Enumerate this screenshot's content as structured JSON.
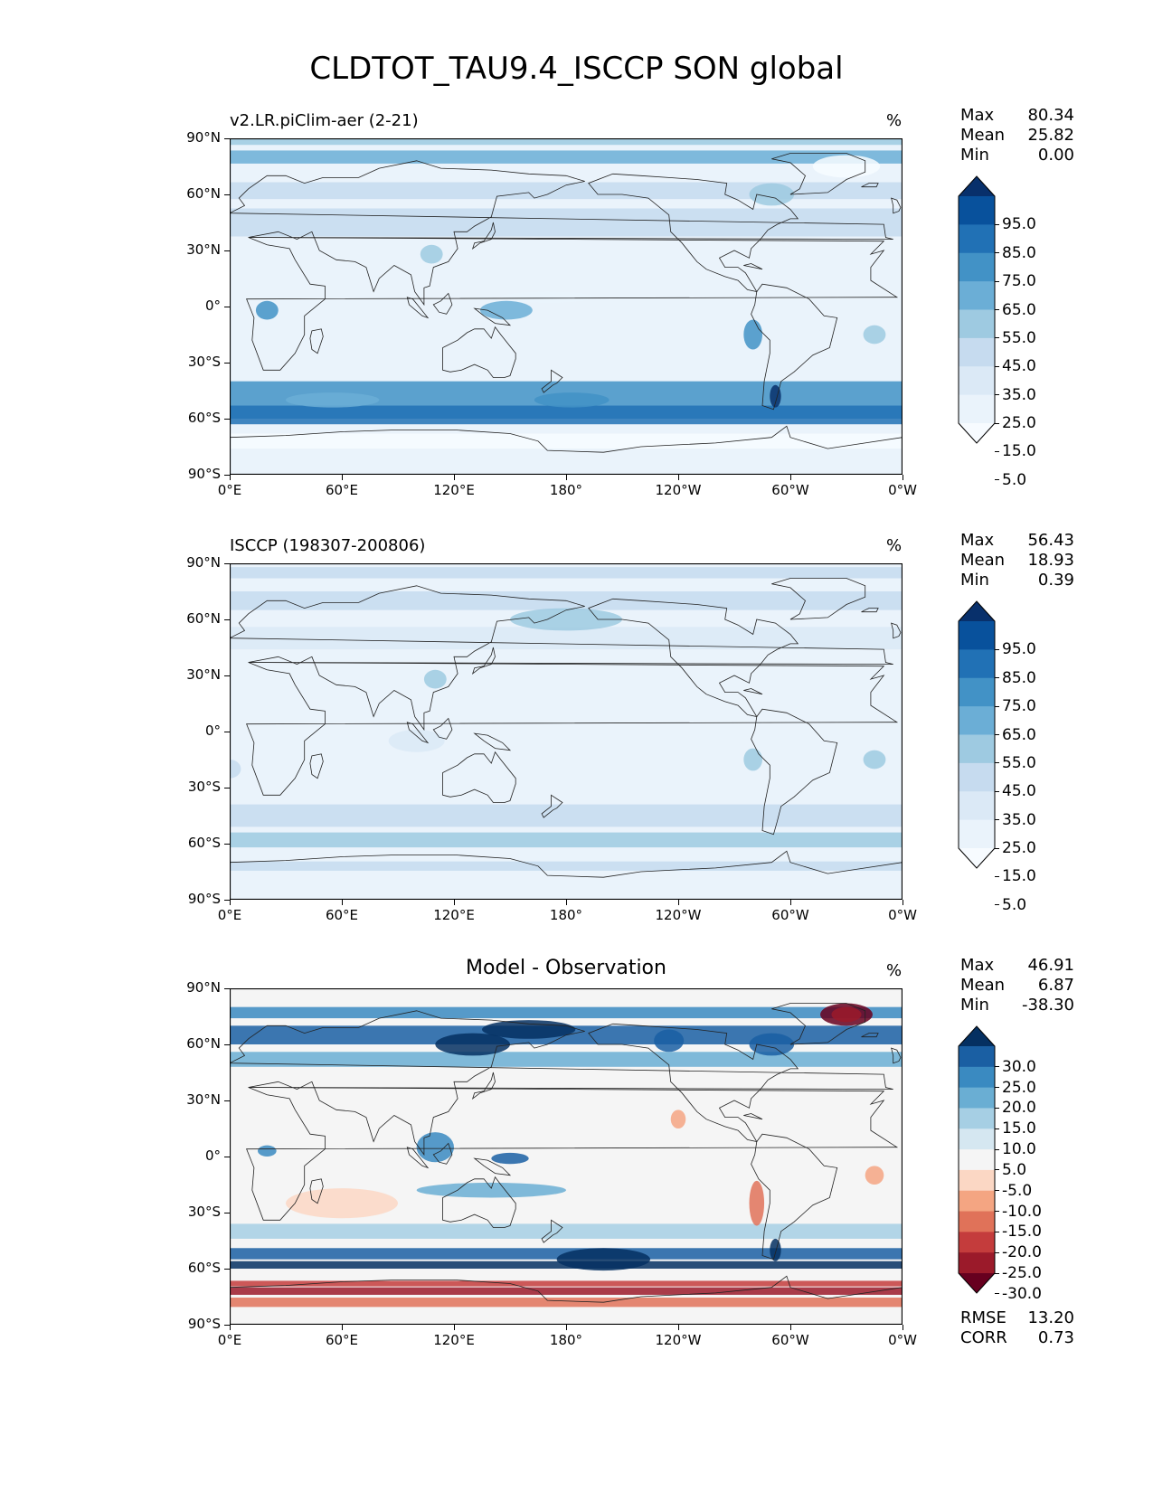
{
  "figure": {
    "title": "CLDTOT_TAU9.4_ISCCP SON global"
  },
  "axes": {
    "lat_ticks": [
      "90°N",
      "60°N",
      "30°N",
      "0°",
      "30°S",
      "60°S",
      "90°S"
    ],
    "lon_ticks": [
      "0°E",
      "60°E",
      "120°E",
      "180°",
      "120°W",
      "60°W",
      "0°W"
    ]
  },
  "panels": [
    {
      "id": "model",
      "title_left": "v2.LR.piClim-aer (2-21)",
      "title_center": "",
      "units": "%",
      "stats": [
        {
          "label": "Max",
          "value": "80.34"
        },
        {
          "label": "Mean",
          "value": "25.82"
        },
        {
          "label": "Min",
          "value": "0.00"
        }
      ],
      "colorbar": {
        "labels": [
          "95.0",
          "85.0",
          "75.0",
          "65.0",
          "55.0",
          "45.0",
          "35.0",
          "25.0",
          "15.0",
          "5.0"
        ],
        "colors": [
          "#08306b",
          "#08519c",
          "#2171b5",
          "#4292c6",
          "#6baed6",
          "#9ecae1",
          "#c6dbef",
          "#dbe9f6",
          "#eaf3fb",
          "#f7fbff"
        ]
      }
    },
    {
      "id": "obs",
      "title_left": "ISCCP (198307-200806)",
      "title_center": "",
      "units": "%",
      "stats": [
        {
          "label": "Max",
          "value": "56.43"
        },
        {
          "label": "Mean",
          "value": "18.93"
        },
        {
          "label": "Min",
          "value": "0.39"
        }
      ],
      "colorbar": {
        "labels": [
          "95.0",
          "85.0",
          "75.0",
          "65.0",
          "55.0",
          "45.0",
          "35.0",
          "25.0",
          "15.0",
          "5.0"
        ],
        "colors": [
          "#08306b",
          "#08519c",
          "#2171b5",
          "#4292c6",
          "#6baed6",
          "#9ecae1",
          "#c6dbef",
          "#dbe9f6",
          "#eaf3fb",
          "#f7fbff"
        ]
      }
    },
    {
      "id": "diff",
      "title_left": "",
      "title_center": "Model - Observation",
      "units": "%",
      "stats": [
        {
          "label": "Max",
          "value": "46.91"
        },
        {
          "label": "Mean",
          "value": "6.87"
        },
        {
          "label": "Min",
          "value": "-38.30"
        }
      ],
      "colorbar": {
        "labels": [
          "30.0",
          "25.0",
          "20.0",
          "15.0",
          "10.0",
          "5.0",
          "-5.0",
          "-10.0",
          "-15.0",
          "-20.0",
          "-25.0",
          "-30.0"
        ],
        "colors": [
          "#053061",
          "#1a5fa3",
          "#3a8ac1",
          "#6aaed3",
          "#a6cfe4",
          "#d5e7f1",
          "#f5f5f5",
          "#fbd7c4",
          "#f4a582",
          "#e07259",
          "#c43c3c",
          "#9b1a2a",
          "#67001f"
        ]
      },
      "footer_stats": [
        {
          "label": "RMSE",
          "value": "13.20"
        },
        {
          "label": "CORR",
          "value": "0.73"
        }
      ]
    }
  ]
}
